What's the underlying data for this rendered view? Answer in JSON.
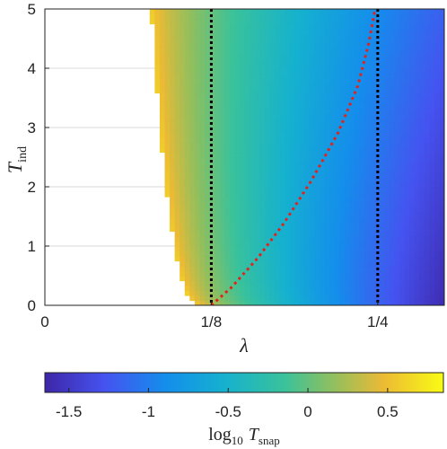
{
  "chart_data": {
    "type": "heatmap",
    "xlabel": "λ",
    "ylabel": {
      "base": "T",
      "subscript": "ind"
    },
    "x_ticks": [
      {
        "value": 0,
        "label": "0"
      },
      {
        "value": 0.125,
        "label": "1/8"
      },
      {
        "value": 0.25,
        "label": "1/4"
      }
    ],
    "y_ticks": [
      0,
      1,
      2,
      3,
      4,
      5
    ],
    "xlim": [
      0,
      0.3
    ],
    "ylim": [
      0,
      5
    ],
    "grid": true,
    "colorbar": {
      "label": {
        "base": "log",
        "base_subscript": "10",
        "var": "T",
        "var_subscript": "snap"
      },
      "range": [
        -1.65,
        0.85
      ],
      "ticks": [
        {
          "value": -1.5,
          "label": "-1.5"
        },
        {
          "value": -1,
          "label": "-1"
        },
        {
          "value": -0.5,
          "label": "-0.5"
        },
        {
          "value": 0,
          "label": "0"
        },
        {
          "value": 0.5,
          "label": "0.5"
        }
      ],
      "colormap": "parula"
    },
    "field": {
      "left_boundary_lambda_at_top": 0.08,
      "left_boundary_lambda_at_zero": 0.12,
      "value_at_left_edge": 0.6,
      "value_at_right_edge_top": -1.2,
      "value_at_right_edge_bottom": -1.6
    },
    "vertical_lines": [
      {
        "x": 0.125,
        "style": "dotted",
        "color": "#000000"
      },
      {
        "x": 0.25,
        "style": "dotted",
        "color": "#000000"
      }
    ],
    "curves": [
      {
        "name": "",
        "style": "dotted",
        "color": "#e0241b",
        "points": [
          [
            0.125,
            0
          ],
          [
            0.14,
            0.3
          ],
          [
            0.16,
            0.8
          ],
          [
            0.18,
            1.4
          ],
          [
            0.2,
            2.1
          ],
          [
            0.22,
            2.9
          ],
          [
            0.235,
            3.7
          ],
          [
            0.243,
            4.4
          ],
          [
            0.248,
            5
          ]
        ]
      }
    ]
  }
}
